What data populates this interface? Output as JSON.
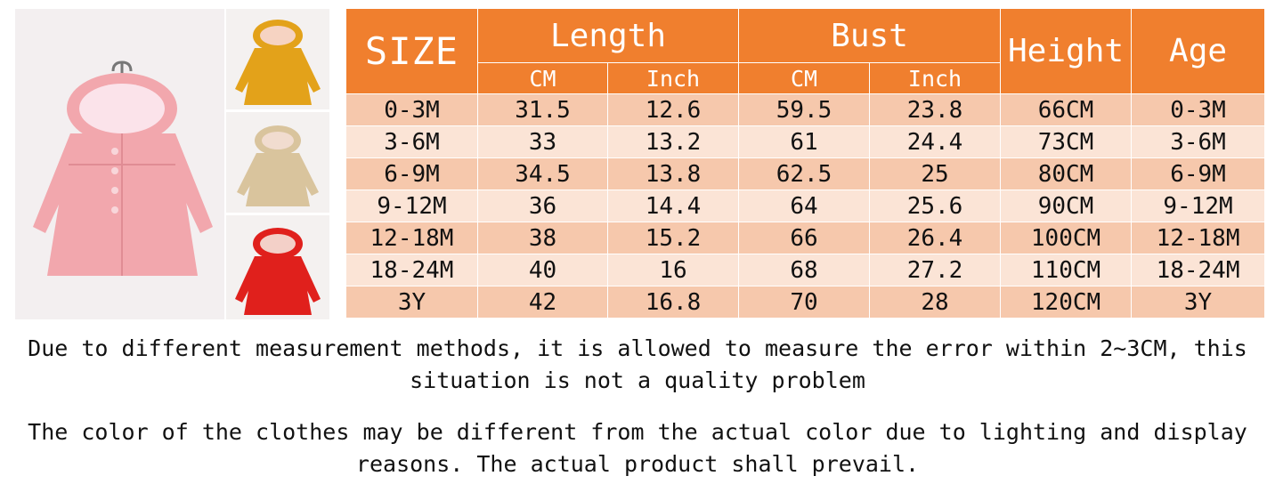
{
  "table": {
    "header": {
      "size": "SIZE",
      "length": "Length",
      "bust": "Bust",
      "height": "Height",
      "age": "Age",
      "cm": "CM",
      "inch": "Inch"
    },
    "rows": [
      [
        "0-3M",
        "31.5",
        "12.6",
        "59.5",
        "23.8",
        "66CM",
        "0-3M"
      ],
      [
        "3-6M",
        "33",
        "13.2",
        "61",
        "24.4",
        "73CM",
        "3-6M"
      ],
      [
        "6-9M",
        "34.5",
        "13.8",
        "62.5",
        "25",
        "80CM",
        "6-9M"
      ],
      [
        "9-12M",
        "36",
        "14.4",
        "64",
        "25.6",
        "90CM",
        "9-12M"
      ],
      [
        "12-18M",
        "38",
        "15.2",
        "66",
        "26.4",
        "100CM",
        "12-18M"
      ],
      [
        "18-24M",
        "40",
        "16",
        "68",
        "27.2",
        "110CM",
        "18-24M"
      ],
      [
        "3Y",
        "42",
        "16.8",
        "70",
        "28",
        "120CM",
        "3Y"
      ]
    ]
  },
  "notes": {
    "measurement": "Due to different measurement methods, it is allowed to measure the error within 2~3CM, this situation is not a quality problem",
    "color": "The color of the clothes may be different from the actual color due to lighting and display reasons. The actual product shall prevail."
  },
  "colors": {
    "header_bg": "#f07f2e",
    "row_dark": "#f6c8ac",
    "row_light": "#fbe4d6",
    "coat_pink": "#f2a7ad",
    "coat_yellow": "#e3a21a",
    "coat_khaki": "#d9c49d",
    "coat_red": "#e0201c"
  },
  "images": {
    "main_photo": "pink-hooded-coat-photo",
    "variants": [
      "yellow-coat-photo",
      "khaki-coat-photo",
      "red-coat-photo"
    ]
  }
}
